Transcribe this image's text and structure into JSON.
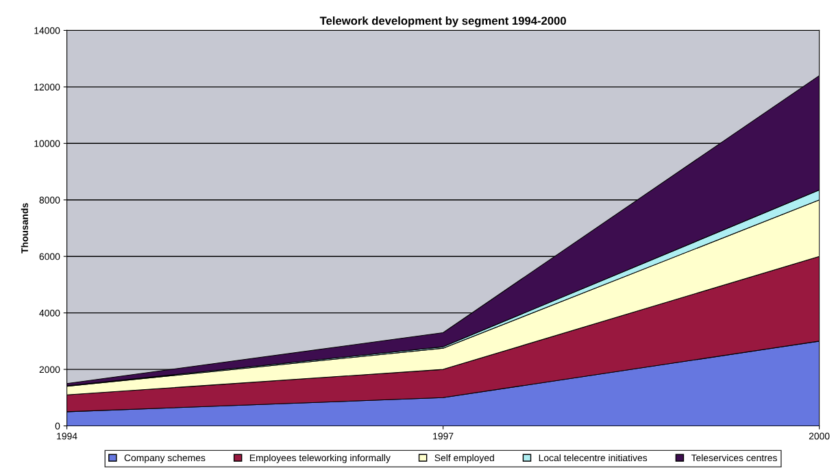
{
  "chart_data": {
    "type": "area",
    "stacked": true,
    "title": "Telework development by segment 1994-2000",
    "ylabel": "Thousands",
    "x": [
      1994,
      1997,
      2000
    ],
    "xlim": [
      1994,
      2000
    ],
    "xticks": [
      1994,
      1997,
      2000
    ],
    "ylim": [
      0,
      14000
    ],
    "yticks": [
      0,
      2000,
      4000,
      6000,
      8000,
      10000,
      12000,
      14000
    ],
    "grid": "y",
    "legend": "bottom",
    "series": [
      {
        "name": "Company schemes",
        "color": "#6677e0",
        "values": [
          500,
          1000,
          3000
        ]
      },
      {
        "name": "Employees teleworking informally",
        "color": "#99183f",
        "values": [
          600,
          1000,
          3000
        ]
      },
      {
        "name": "Self employed",
        "color": "#ffffcc",
        "values": [
          300,
          750,
          2000
        ]
      },
      {
        "name": "Local telecentre initiatives",
        "color": "#aeeef2",
        "values": [
          20,
          50,
          350
        ]
      },
      {
        "name": "Teleservices centres",
        "color": "#3d0d4f",
        "values": [
          80,
          500,
          4050
        ]
      }
    ]
  }
}
